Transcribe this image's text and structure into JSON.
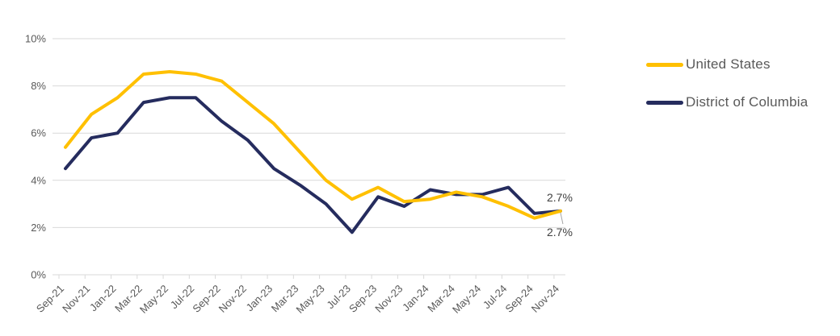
{
  "chart_data": {
    "type": "line",
    "title": "",
    "xlabel": "",
    "ylabel": "",
    "categories": [
      "Sep-21",
      "Nov-21",
      "Jan-22",
      "Mar-22",
      "May-22",
      "Jul-22",
      "Sep-22",
      "Nov-22",
      "Jan-23",
      "Mar-23",
      "May-23",
      "Jul-23",
      "Sep-23",
      "Nov-23",
      "Jan-24",
      "Mar-24",
      "May-24",
      "Jul-24",
      "Sep-24",
      "Nov-24"
    ],
    "series": [
      {
        "name": "United States",
        "color": "#FFC000",
        "end_label": "2.7%",
        "values": [
          5.4,
          6.8,
          7.5,
          8.5,
          8.6,
          8.5,
          8.2,
          7.3,
          6.4,
          5.2,
          4.0,
          3.2,
          3.7,
          3.1,
          3.2,
          3.5,
          3.3,
          2.9,
          2.4,
          2.7
        ]
      },
      {
        "name": "District of Columbia",
        "color": "#252C5E",
        "end_label": "2.7%",
        "values": [
          4.5,
          5.8,
          6.0,
          7.3,
          7.5,
          7.5,
          6.5,
          5.7,
          4.5,
          3.8,
          3.0,
          1.8,
          3.3,
          2.9,
          3.6,
          3.4,
          3.4,
          3.7,
          2.6,
          2.7
        ]
      }
    ],
    "y_axis": {
      "min": 0,
      "max": 10,
      "ticks": [
        0,
        2,
        4,
        6,
        8,
        10
      ],
      "tick_labels": [
        "0%",
        "2%",
        "4%",
        "6%",
        "8%",
        "10%"
      ]
    },
    "grid": true,
    "legend_position": "right",
    "colors": {
      "gridline": "#D9D9D9",
      "axis_label": "#595959",
      "end_label": "#3F3F3F",
      "leader_line": "#A6A6A6"
    }
  }
}
